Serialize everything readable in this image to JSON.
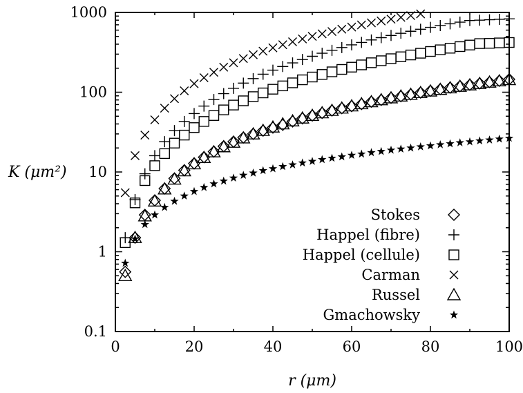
{
  "chart_data": {
    "type": "scatter",
    "title": "",
    "xlabel": "r (μm)",
    "ylabel": "K (μm²)",
    "xlim": [
      0,
      100
    ],
    "ylim": [
      0.1,
      1000
    ],
    "yscale": "log",
    "grid": false,
    "legend_position": "bottom-right",
    "x_ticks": [
      "0",
      "20",
      "40",
      "60",
      "80",
      "100"
    ],
    "y_ticks": [
      "0.1",
      "1",
      "10",
      "100",
      "1000"
    ],
    "x": [
      2.5,
      5,
      7.5,
      10,
      12.5,
      15,
      17.5,
      20,
      22.5,
      25,
      27.5,
      30,
      32.5,
      35,
      37.5,
      40,
      42.5,
      45,
      47.5,
      50,
      52.5,
      55,
      57.5,
      60,
      62.5,
      65,
      67.5,
      70,
      72.5,
      75,
      77.5,
      80,
      82.5,
      85,
      87.5,
      90,
      92.5,
      95,
      97.5,
      100
    ],
    "series": [
      {
        "name": "Stokes",
        "marker": "diamond",
        "values": [
          0.56,
          1.5,
          2.9,
          4.4,
          6.2,
          8.3,
          10.5,
          12.8,
          15.3,
          18,
          21,
          24,
          27,
          30,
          33,
          36,
          39,
          43,
          47,
          51,
          55,
          59,
          63,
          67,
          71,
          76,
          80,
          85,
          89,
          94,
          99,
          104,
          109,
          114,
          119,
          124,
          129,
          134,
          139,
          145
        ]
      },
      {
        "name": "Happel (fibre)",
        "marker": "plus",
        "values": [
          1.5,
          4.5,
          9.5,
          16,
          24,
          33,
          43,
          54,
          67,
          81,
          96,
          112,
          130,
          148,
          168,
          189,
          210,
          233,
          257,
          282,
          308,
          335,
          363,
          392,
          421,
          452,
          483,
          515,
          548,
          581,
          615,
          650,
          685,
          720,
          756,
          792,
          800,
          810,
          820,
          830
        ]
      },
      {
        "name": "Happel (cellule)",
        "marker": "square",
        "values": [
          1.3,
          4.1,
          7.8,
          12,
          17,
          23,
          29,
          36,
          43,
          51,
          60,
          69,
          78,
          88,
          98,
          109,
          120,
          131,
          143,
          155,
          167,
          180,
          193,
          206,
          220,
          234,
          248,
          263,
          278,
          293,
          308,
          324,
          340,
          356,
          373,
          390,
          407,
          410,
          415,
          420
        ]
      },
      {
        "name": "Carman",
        "marker": "cross",
        "values": [
          5.5,
          16,
          29,
          45,
          63,
          83,
          104,
          128,
          152,
          178,
          206,
          234,
          264,
          295,
          327,
          360,
          394,
          429,
          465,
          501,
          539,
          577,
          616,
          656,
          697,
          739,
          781,
          824,
          868,
          913,
          958,
          null,
          null,
          null,
          null,
          null,
          null,
          null,
          null,
          null
        ]
      },
      {
        "name": "Russel",
        "marker": "triangle",
        "values": [
          0.5,
          1.5,
          2.8,
          4.3,
          6.1,
          8.1,
          10.3,
          12.6,
          15.1,
          17.8,
          20.6,
          23.5,
          26.6,
          29.8,
          33,
          36.4,
          39.9,
          43.5,
          47.2,
          51,
          54.9,
          58.9,
          63,
          67.1,
          71.3,
          75.6,
          80,
          84.5,
          89,
          93.6,
          98.3,
          103,
          108,
          113,
          118,
          123,
          128,
          133,
          138,
          143
        ]
      },
      {
        "name": "Gmachowsky",
        "marker": "star",
        "values": [
          0.72,
          1.45,
          2.2,
          2.9,
          3.6,
          4.3,
          5,
          5.7,
          6.4,
          7.1,
          7.7,
          8.4,
          9.1,
          9.7,
          10.4,
          11,
          11.7,
          12.3,
          13,
          13.6,
          14.3,
          14.9,
          15.5,
          16.2,
          16.8,
          17.5,
          18.1,
          18.8,
          19.4,
          20,
          20.7,
          21.3,
          22,
          22.6,
          23.3,
          23.9,
          24.6,
          25.2,
          25.9,
          26.5
        ]
      }
    ]
  }
}
